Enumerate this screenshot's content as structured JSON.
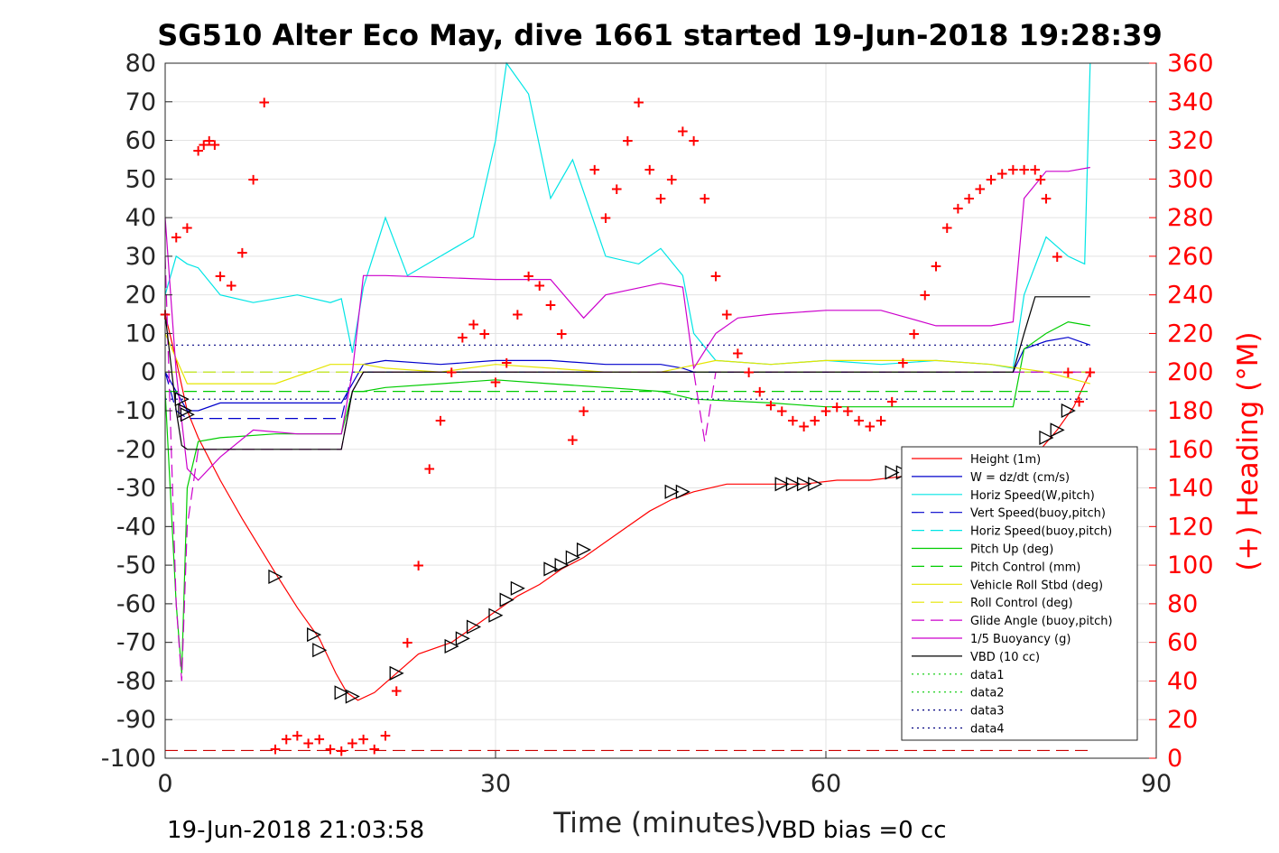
{
  "chart_data": {
    "type": "line",
    "title": "SG510 Alter Eco May, dive 1661 started 19-Jun-2018 19:28:39",
    "xlabel": "Time (minutes)",
    "ylabel": "",
    "y2label": "(+) Heading (°M)",
    "xlim": [
      0,
      90
    ],
    "ylim": [
      -100,
      80
    ],
    "y2lim": [
      0,
      360
    ],
    "xticks": [
      "0",
      "30",
      "60",
      "90"
    ],
    "yticks": [
      "80",
      "70",
      "60",
      "50",
      "40",
      "30",
      "20",
      "10",
      "0",
      "-10",
      "-20",
      "-30",
      "-40",
      "-50",
      "-60",
      "-70",
      "-80",
      "-90",
      "-100"
    ],
    "y2ticks": [
      "360",
      "340",
      "320",
      "300",
      "280",
      "260",
      "240",
      "220",
      "200",
      "180",
      "160",
      "140",
      "120",
      "100",
      "80",
      "60",
      "40",
      "20",
      "0"
    ],
    "grid": true,
    "legend_position": "lower-right",
    "footer_left": "19-Jun-2018 21:03:58",
    "footer_right": "VBD bias =0 cc",
    "series": [
      {
        "name": "Height (1m)",
        "color": "#ff0000",
        "style": "solid",
        "x": [
          0,
          1,
          2,
          3,
          5,
          7,
          10,
          12,
          14,
          15.5,
          16.5,
          17.5,
          19,
          21,
          23,
          26,
          28,
          30,
          32,
          34,
          36,
          38,
          40,
          42,
          44,
          46,
          48,
          51,
          55,
          58,
          61,
          64,
          67,
          70,
          73,
          76,
          78,
          79.5,
          81,
          82.5,
          84
        ],
        "y": [
          15,
          3,
          -10,
          -17,
          -28,
          -38,
          -52,
          -61,
          -69,
          -78,
          -83,
          -85,
          -83,
          -78,
          -73,
          -70,
          -66,
          -62,
          -58,
          -55,
          -51,
          -48,
          -44,
          -40,
          -36,
          -33,
          -31,
          -29,
          -29,
          -29,
          -28,
          -28,
          -27,
          -26,
          -25,
          -23,
          -22,
          -20,
          -15,
          -9,
          0
        ]
      },
      {
        "name": "W = dz/dt (cm/s)",
        "color": "#0000cc",
        "style": "solid",
        "x": [
          0,
          1,
          2,
          3,
          5,
          8,
          12,
          16,
          17,
          18,
          20,
          25,
          30,
          35,
          40,
          45,
          47,
          48,
          50,
          55,
          60,
          65,
          70,
          75,
          77,
          78,
          80,
          82,
          84
        ],
        "y": [
          0,
          -5,
          -10,
          -10,
          -8,
          -8,
          -8,
          -8,
          -3,
          2,
          3,
          2,
          3,
          3,
          2,
          2,
          1,
          0,
          0,
          0,
          0,
          0,
          0,
          0,
          0,
          6,
          8,
          9,
          7
        ]
      },
      {
        "name": "Horiz Speed(W,pitch)",
        "color": "#00e5e5",
        "style": "solid",
        "x": [
          0,
          1,
          2,
          3,
          5,
          8,
          12,
          15,
          16,
          17,
          18,
          20,
          22,
          25,
          28,
          30,
          31,
          33,
          35,
          37,
          40,
          43,
          45,
          47,
          48,
          50,
          55,
          60,
          65,
          70,
          75,
          77,
          78,
          80,
          82,
          83.5,
          84
        ],
        "y": [
          20,
          30,
          28,
          27,
          20,
          18,
          20,
          18,
          19,
          5,
          22,
          40,
          25,
          30,
          35,
          60,
          80,
          72,
          45,
          55,
          30,
          28,
          32,
          25,
          10,
          3,
          2,
          3,
          2,
          3,
          2,
          1,
          20,
          35,
          30,
          28,
          80
        ]
      },
      {
        "name": "Vert Speed(buoy,pitch)",
        "color": "#0000cc",
        "style": "dash",
        "x": [
          0,
          1,
          2,
          3,
          16,
          17,
          18,
          84
        ],
        "y": [
          0,
          -10,
          -12,
          -12,
          -12,
          0,
          0,
          0
        ]
      },
      {
        "name": "Horiz Speed(buoy,pitch)",
        "color": "#00e5e5",
        "style": "dash",
        "x": [
          0,
          2,
          84
        ],
        "y": [
          0,
          0,
          0
        ]
      },
      {
        "name": "Pitch Up (deg)",
        "color": "#00cc00",
        "style": "solid",
        "x": [
          0,
          1,
          1.5,
          2,
          3,
          5,
          10,
          16,
          17,
          18,
          20,
          25,
          30,
          35,
          40,
          45,
          48,
          55,
          60,
          65,
          70,
          75,
          77,
          78,
          80,
          82,
          84
        ],
        "y": [
          -5,
          -60,
          -78,
          -30,
          -18,
          -17,
          -16,
          -16,
          -5,
          -5,
          -4,
          -3,
          -2,
          -3,
          -4,
          -5,
          -7,
          -8,
          -9,
          -9,
          -9,
          -9,
          -9,
          6,
          10,
          13,
          12
        ]
      },
      {
        "name": "Pitch Control (mm)",
        "color": "#00cc00",
        "style": "dash",
        "x": [
          0,
          84
        ],
        "y": [
          -5,
          -5
        ]
      },
      {
        "name": "Vehicle Roll Stbd (deg)",
        "color": "#e5e500",
        "style": "solid",
        "x": [
          0,
          2,
          5,
          10,
          15,
          18,
          20,
          25,
          30,
          35,
          40,
          45,
          50,
          55,
          60,
          65,
          70,
          75,
          80,
          84
        ],
        "y": [
          10,
          -3,
          -3,
          -3,
          2,
          2,
          1,
          0,
          2,
          1,
          0,
          0,
          3,
          2,
          3,
          3,
          3,
          2,
          0,
          -3
        ]
      },
      {
        "name": "Roll Control (deg)",
        "color": "#e5e500",
        "style": "dash",
        "x": [
          0,
          84
        ],
        "y": [
          0,
          0
        ]
      },
      {
        "name": "Glide Angle (buoy,pitch)",
        "color": "#cc00cc",
        "style": "dash",
        "x": [
          0,
          1,
          1.5,
          2,
          3,
          16,
          17,
          18,
          48,
          49,
          50,
          84
        ],
        "y": [
          30,
          -60,
          -80,
          -40,
          -20,
          -20,
          -5,
          0,
          0,
          -18,
          0,
          0
        ]
      },
      {
        "name": "1/5 Buoyancy (g)",
        "color": "#cc00cc",
        "style": "solid",
        "x": [
          0,
          1,
          2,
          3,
          5,
          8,
          12,
          16,
          17,
          18,
          20,
          30,
          35,
          38,
          40,
          45,
          47,
          48,
          50,
          52,
          55,
          60,
          65,
          70,
          75,
          77,
          78,
          80,
          82,
          84
        ],
        "y": [
          40,
          0,
          -25,
          -28,
          -22,
          -15,
          -16,
          -16,
          0,
          25,
          25,
          24,
          24,
          14,
          20,
          23,
          22,
          1,
          10,
          14,
          15,
          16,
          16,
          12,
          12,
          13,
          45,
          52,
          52,
          53
        ]
      },
      {
        "name": "VBD (10 cc)",
        "color": "#000000",
        "style": "solid",
        "x": [
          0,
          1,
          1.5,
          2,
          16,
          17,
          18,
          77,
          78,
          79,
          84
        ],
        "y": [
          15,
          -10,
          -19,
          -20,
          -20,
          -5,
          0,
          0,
          10,
          19.5,
          19.5
        ]
      },
      {
        "name": "data1",
        "color": "#00cc00",
        "style": "dot",
        "x": [],
        "y": []
      },
      {
        "name": "data2",
        "color": "#00cc00",
        "style": "dot",
        "x": [],
        "y": []
      },
      {
        "name": "data3",
        "color": "#000080",
        "style": "dot",
        "x": [
          0,
          84
        ],
        "y": [
          7,
          7
        ]
      },
      {
        "name": "data4",
        "color": "#000080",
        "style": "dot",
        "x": [
          0,
          84
        ],
        "y": [
          -7,
          -7
        ]
      }
    ],
    "reference_line": {
      "color": "#cc0000",
      "style": "dash",
      "y": -98
    },
    "heading": {
      "axis": "right",
      "marker": "+",
      "color": "#ff0000",
      "x": [
        0,
        1,
        2,
        3,
        3.5,
        4,
        4.5,
        5,
        6,
        7,
        8,
        9,
        10,
        11,
        12,
        13,
        14,
        15,
        16,
        17,
        18,
        19,
        20,
        21,
        22,
        23,
        24,
        25,
        26,
        27,
        28,
        29,
        30,
        31,
        32,
        33,
        34,
        35,
        36,
        37,
        38,
        39,
        40,
        41,
        42,
        43,
        44,
        45,
        46,
        47,
        48,
        49,
        50,
        51,
        52,
        53,
        54,
        55,
        56,
        57,
        58,
        59,
        60,
        61,
        62,
        63,
        64,
        65,
        66,
        67,
        68,
        69,
        70,
        71,
        72,
        73,
        74,
        75,
        76,
        77,
        78,
        79,
        79.5,
        80,
        81,
        82,
        83,
        84
      ],
      "y": [
        230,
        270,
        275,
        315,
        318,
        320,
        318,
        250,
        245,
        262,
        300,
        340,
        5,
        10,
        12,
        8,
        10,
        5,
        4,
        8,
        10,
        5,
        12,
        35,
        60,
        100,
        150,
        175,
        200,
        218,
        225,
        220,
        195,
        205,
        230,
        250,
        245,
        235,
        220,
        165,
        180,
        305,
        280,
        295,
        320,
        340,
        305,
        290,
        300,
        325,
        320,
        290,
        250,
        230,
        210,
        200,
        190,
        183,
        180,
        175,
        172,
        175,
        180,
        182,
        180,
        175,
        172,
        175,
        185,
        205,
        220,
        240,
        255,
        275,
        285,
        290,
        295,
        300,
        303,
        305,
        305,
        305,
        300,
        290,
        260,
        200,
        185,
        200
      ]
    },
    "markers": {
      "type": "triangle",
      "color": "#000000",
      "x": [
        1.5,
        1.8,
        2,
        10,
        13.5,
        14,
        16,
        17,
        21,
        26,
        27,
        28,
        30,
        31,
        32,
        35,
        36,
        37,
        38,
        46,
        47,
        56,
        57,
        58,
        59,
        66,
        67,
        80,
        81,
        82
      ],
      "y": [
        -7,
        -10,
        -11,
        -53,
        -68,
        -72,
        -83,
        -84,
        -78,
        -71,
        -69,
        -66,
        -63,
        -59,
        -56,
        -51,
        -50,
        -48,
        -46,
        -31,
        -31,
        -29,
        -29,
        -29,
        -29,
        -26,
        -26,
        -17,
        -15,
        -10
      ]
    }
  }
}
